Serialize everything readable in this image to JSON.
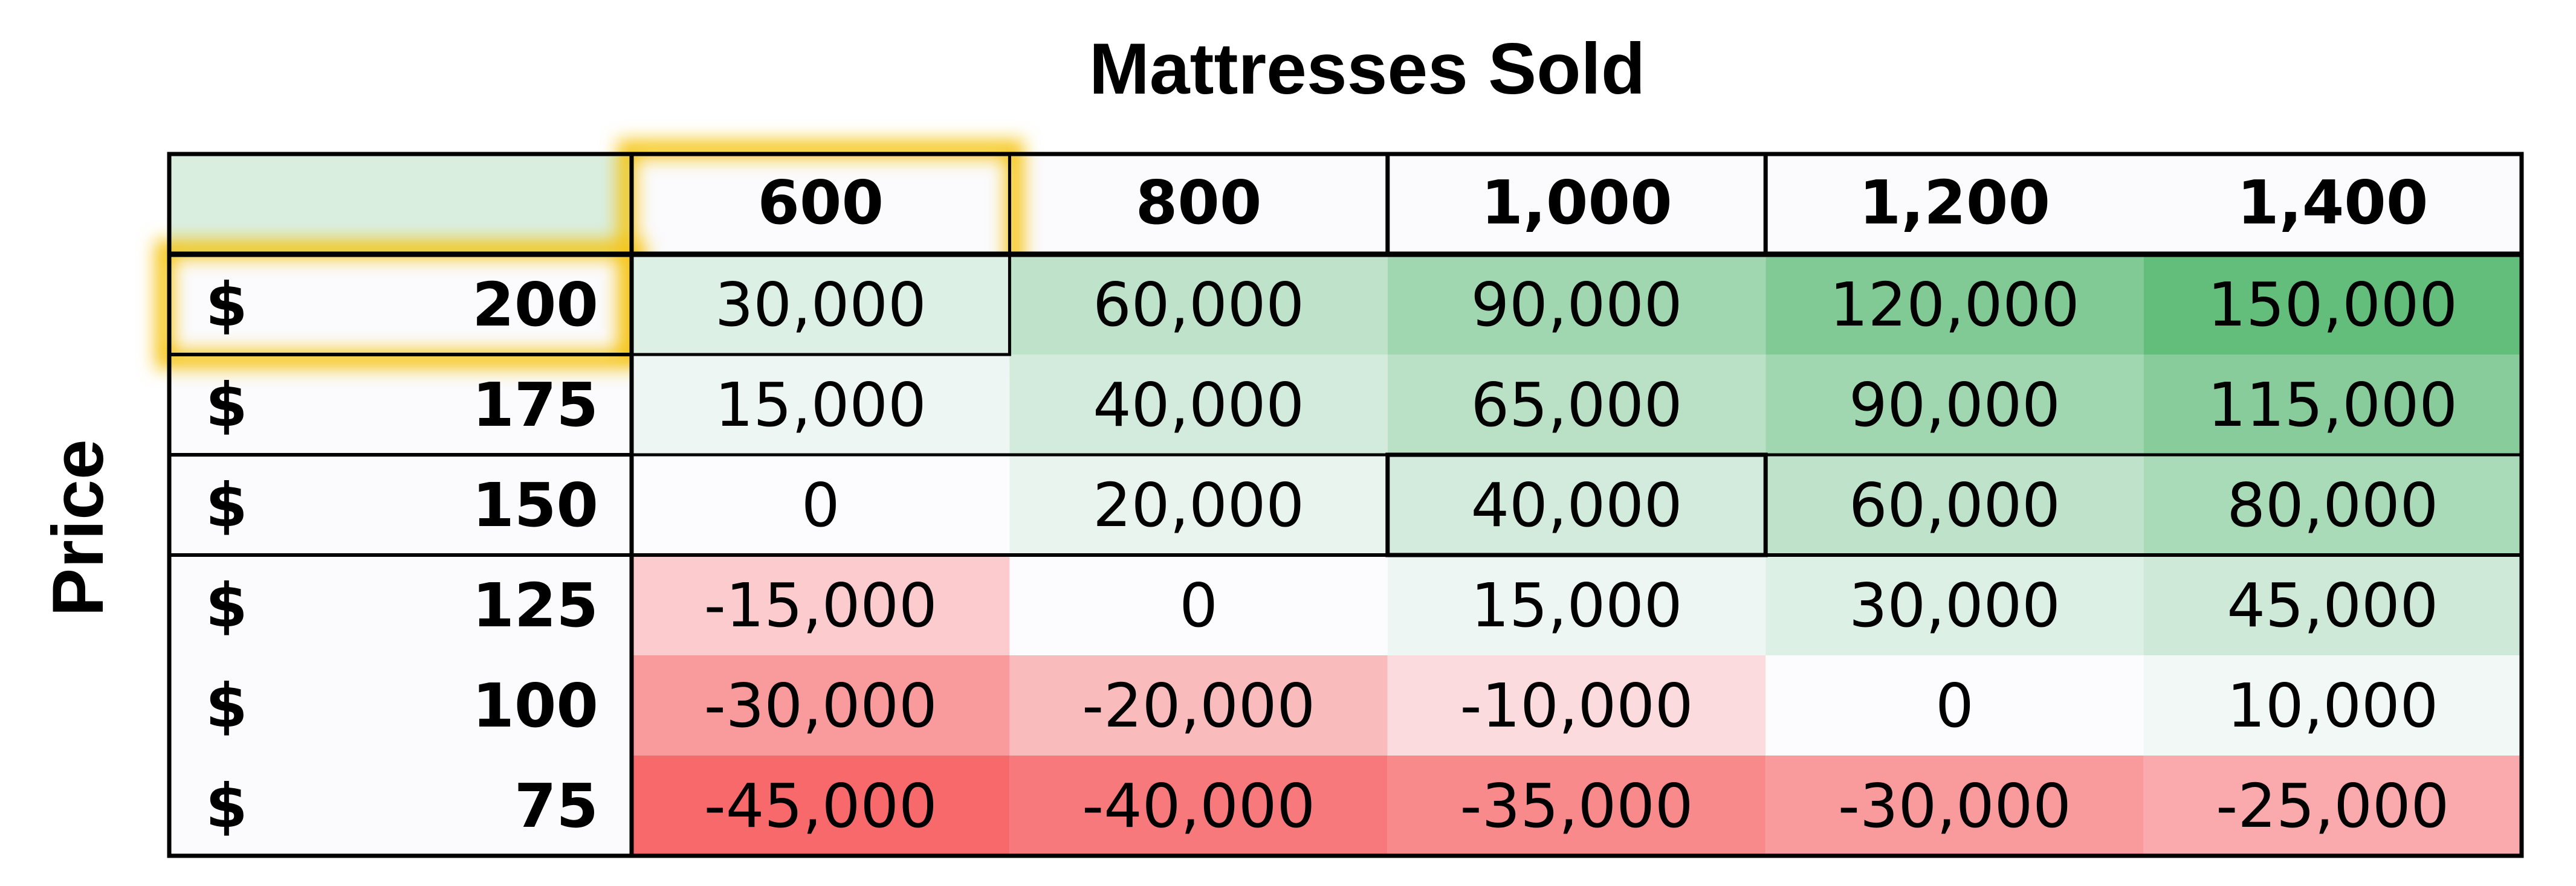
{
  "chart_data": {
    "type": "heatmap",
    "title": "Mattresses Sold",
    "ylabel": "Price",
    "x": [
      "600",
      "800",
      "1,000",
      "1,200",
      "1,400"
    ],
    "y": [
      {
        "currency": "$",
        "price": "200"
      },
      {
        "currency": "$",
        "price": "175"
      },
      {
        "currency": "$",
        "price": "150"
      },
      {
        "currency": "$",
        "price": "125"
      },
      {
        "currency": "$",
        "price": "100"
      },
      {
        "currency": "$",
        "price": "75"
      }
    ],
    "values": [
      [
        30000,
        60000,
        90000,
        120000,
        150000
      ],
      [
        15000,
        40000,
        65000,
        90000,
        115000
      ],
      [
        0,
        20000,
        40000,
        60000,
        80000
      ],
      [
        -15000,
        0,
        15000,
        30000,
        45000
      ],
      [
        -30000,
        -20000,
        -10000,
        0,
        10000
      ],
      [
        -45000,
        -40000,
        -35000,
        -30000,
        -25000
      ]
    ],
    "labels": [
      [
        "30,000",
        "60,000",
        "90,000",
        "120,000",
        "150,000"
      ],
      [
        "15,000",
        "40,000",
        "65,000",
        "90,000",
        "115,000"
      ],
      [
        "0",
        "20,000",
        "40,000",
        "60,000",
        "80,000"
      ],
      [
        "-15,000",
        "0",
        "15,000",
        "30,000",
        "45,000"
      ],
      [
        "-30,000",
        "-20,000",
        "-10,000",
        "0",
        "10,000"
      ],
      [
        "-45,000",
        "-40,000",
        "-35,000",
        "-30,000",
        "-25,000"
      ]
    ],
    "color_scale": {
      "positive_max": "#63be7b",
      "neutral": "#fcfcff",
      "negative_min": "#f8696b"
    },
    "header_fill": "#d9eedf",
    "highlight_color": "#f5c518",
    "highlighted": {
      "column": "600",
      "row_price": "200"
    },
    "boxed_cell": {
      "column": "1,000",
      "row_price": "150"
    }
  }
}
